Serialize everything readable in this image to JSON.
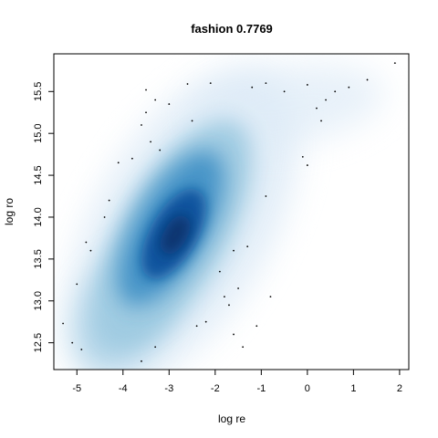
{
  "chart_data": {
    "type": "smoothscatter",
    "title": "fashion 0.7769",
    "xlabel": "log re",
    "ylabel": "log ro",
    "xlim": [
      -5.5,
      2.2
    ],
    "ylim": [
      12.18,
      15.95
    ],
    "xticks": [
      -5,
      -4,
      -3,
      -2,
      -1,
      0,
      1,
      2
    ],
    "xtick_labels": [
      "-5",
      "-4",
      "-3",
      "-2",
      "-1",
      "0",
      "1",
      "2"
    ],
    "yticks": [
      12.5,
      13.0,
      13.5,
      14.0,
      14.5,
      15.0,
      15.5
    ],
    "ytick_labels": [
      "12.5",
      "13.0",
      "13.5",
      "14.0",
      "14.5",
      "15.0",
      "15.5"
    ],
    "grid": false,
    "colormap": [
      "#ffffff",
      "#deebf7",
      "#9ecae1",
      "#4292c6",
      "#08519c",
      "#08306b"
    ],
    "density_peak": {
      "x": -2.9,
      "y": 13.8
    },
    "outlier_points": [
      {
        "x": 1.9,
        "y": 15.84
      },
      {
        "x": 1.3,
        "y": 15.64
      },
      {
        "x": 0.9,
        "y": 15.55
      },
      {
        "x": 0.6,
        "y": 15.5
      },
      {
        "x": 0.4,
        "y": 15.4
      },
      {
        "x": 0.2,
        "y": 15.3
      },
      {
        "x": 0.0,
        "y": 15.58
      },
      {
        "x": 0.3,
        "y": 15.15
      },
      {
        "x": -0.1,
        "y": 14.72
      },
      {
        "x": 0.0,
        "y": 14.62
      },
      {
        "x": -0.9,
        "y": 15.6
      },
      {
        "x": -0.5,
        "y": 15.5
      },
      {
        "x": -1.2,
        "y": 15.55
      },
      {
        "x": -2.1,
        "y": 15.6
      },
      {
        "x": -2.6,
        "y": 15.59
      },
      {
        "x": -3.5,
        "y": 15.52
      },
      {
        "x": -3.3,
        "y": 15.4
      },
      {
        "x": -3.0,
        "y": 15.35
      },
      {
        "x": -3.6,
        "y": 15.1
      },
      {
        "x": -3.4,
        "y": 14.9
      },
      {
        "x": -3.8,
        "y": 14.7
      },
      {
        "x": -4.1,
        "y": 14.65
      },
      {
        "x": -4.3,
        "y": 14.2
      },
      {
        "x": -4.4,
        "y": 14.0
      },
      {
        "x": -4.8,
        "y": 13.7
      },
      {
        "x": -4.7,
        "y": 13.6
      },
      {
        "x": -5.0,
        "y": 13.2
      },
      {
        "x": -5.3,
        "y": 12.73
      },
      {
        "x": -5.1,
        "y": 12.5
      },
      {
        "x": -4.9,
        "y": 12.42
      },
      {
        "x": -3.6,
        "y": 12.28
      },
      {
        "x": -3.3,
        "y": 12.45
      },
      {
        "x": -2.4,
        "y": 12.7
      },
      {
        "x": -2.2,
        "y": 12.75
      },
      {
        "x": -1.6,
        "y": 12.6
      },
      {
        "x": -1.4,
        "y": 12.45
      },
      {
        "x": -1.7,
        "y": 12.95
      },
      {
        "x": -1.8,
        "y": 13.05
      },
      {
        "x": -1.5,
        "y": 13.15
      },
      {
        "x": -1.9,
        "y": 13.35
      },
      {
        "x": -1.6,
        "y": 13.6
      },
      {
        "x": -1.3,
        "y": 13.65
      },
      {
        "x": -0.8,
        "y": 13.05
      },
      {
        "x": -1.1,
        "y": 12.7
      },
      {
        "x": -0.9,
        "y": 14.25
      },
      {
        "x": -2.5,
        "y": 15.15
      },
      {
        "x": -3.2,
        "y": 14.8
      },
      {
        "x": -3.5,
        "y": 15.25
      }
    ]
  }
}
